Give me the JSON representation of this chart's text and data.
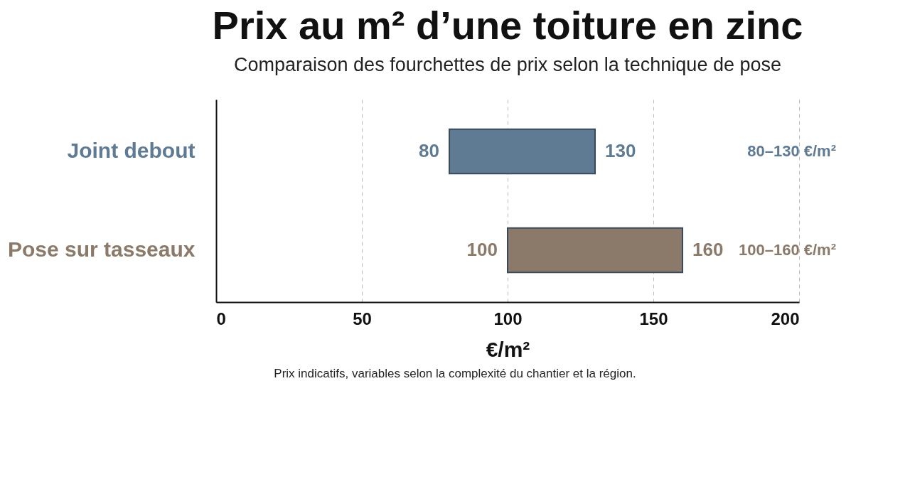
{
  "chart_data": {
    "type": "bar",
    "orientation": "horizontal",
    "title": "Prix au m² d’une toiture en zinc",
    "subtitle": "Comparaison des fourchettes de prix selon la technique de pose",
    "xlabel": "€/m²",
    "categories": [
      "Joint debout",
      "Pose sur tasseaux"
    ],
    "base": [
      80,
      100
    ],
    "values": [
      50,
      60
    ],
    "colors": [
      "#5f7a93",
      "#8b7a69"
    ],
    "xlim": [
      0,
      200
    ],
    "xticks": [
      0,
      50,
      100,
      150,
      200
    ],
    "grid": "x",
    "legend": false,
    "annotations": [
      {
        "text": "80",
        "x": 80,
        "y": "Joint debout"
      },
      {
        "text": "130",
        "x": 130,
        "y": "Joint debout"
      },
      {
        "text": "100",
        "x": 100,
        "y": "Pose sur tasseaux"
      },
      {
        "text": "160",
        "x": 160,
        "y": "Pose sur tasseaux"
      },
      "80–130 €/m²",
      "100–160 €/m²",
      "Prix indicatifs, variables selon la complexité du chantier et la région."
    ]
  }
}
